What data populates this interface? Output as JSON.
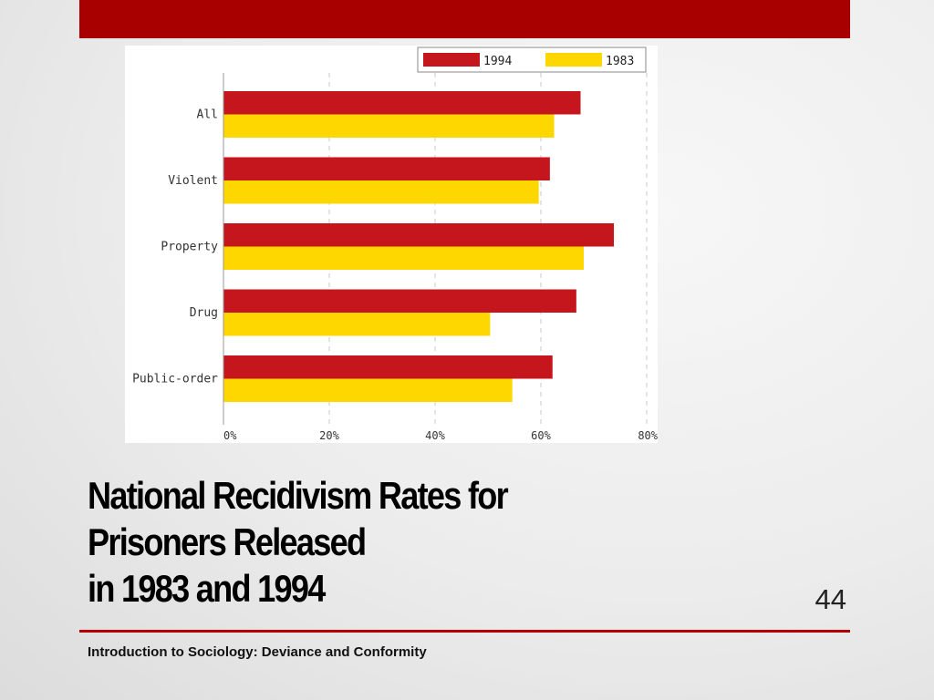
{
  "slide": {
    "title_lines": [
      "National Recidivism Rates for",
      "Prisoners Released",
      "in 1983 and 1994"
    ],
    "page_number": "44",
    "footer": "Introduction to Sociology: Deviance and Conformity"
  },
  "chart_data": {
    "type": "bar",
    "orientation": "horizontal",
    "categories": [
      "All",
      "Violent",
      "Property",
      "Drug",
      "Public-order"
    ],
    "series": [
      {
        "name": "1994",
        "color": "#c4161c",
        "values": [
          67.5,
          61.7,
          73.8,
          66.7,
          62.2
        ]
      },
      {
        "name": "1983",
        "color": "#ffd700",
        "values": [
          62.5,
          59.6,
          68.1,
          50.4,
          54.6
        ]
      }
    ],
    "xlim": [
      0,
      80
    ],
    "x_ticks": [
      "0%",
      "20%",
      "40%",
      "60%",
      "80%"
    ],
    "grid": true,
    "legend_position": "top-right"
  }
}
